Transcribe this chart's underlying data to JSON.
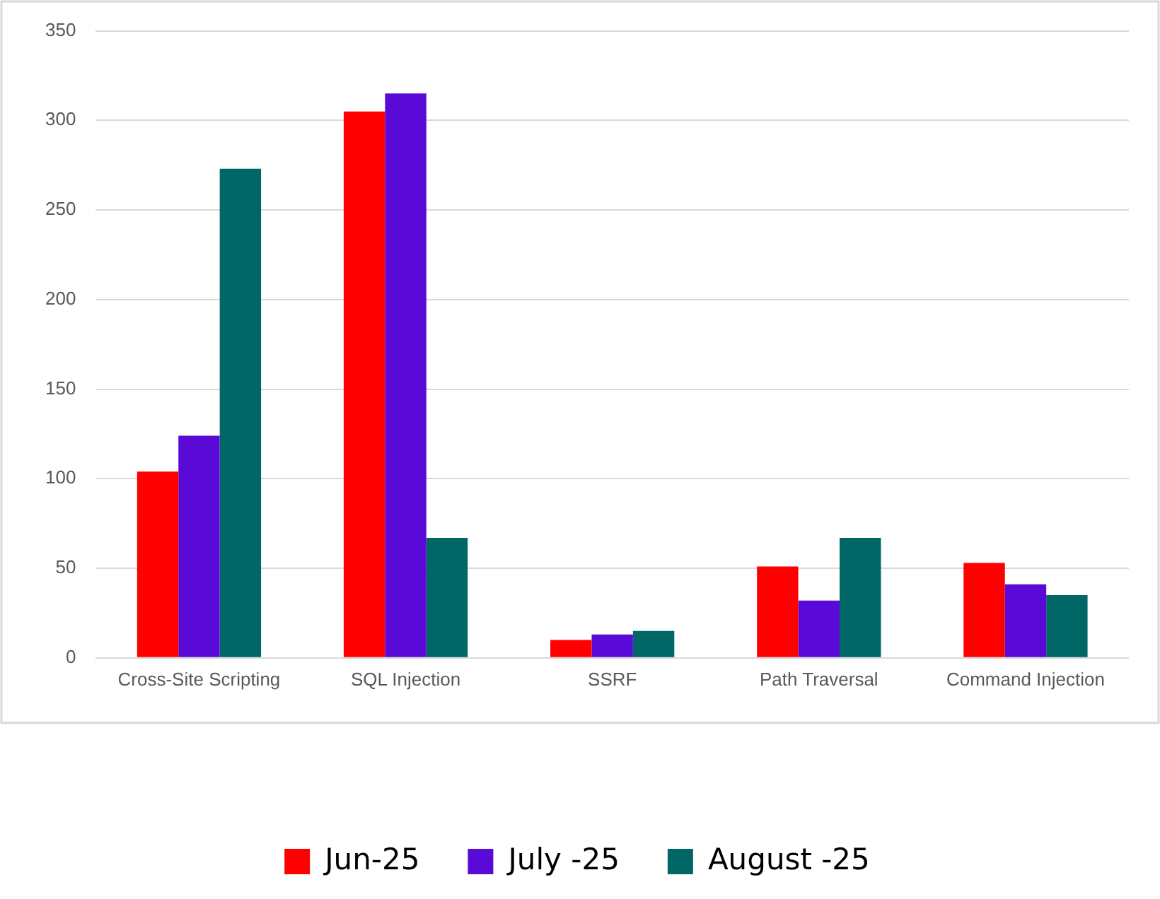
{
  "chart_data": {
    "type": "bar",
    "categories": [
      "Cross-Site Scripting",
      "SQL Injection",
      "SSRF",
      "Path Traversal",
      "Command Injection"
    ],
    "series": [
      {
        "name": "Jun-25",
        "color": "#ff0000",
        "values": [
          104,
          305,
          10,
          51,
          53
        ]
      },
      {
        "name": "July -25",
        "color": "#5a0ad6",
        "values": [
          124,
          315,
          13,
          32,
          41
        ]
      },
      {
        "name": "August -25",
        "color": "#006666",
        "values": [
          273,
          67,
          15,
          67,
          35
        ]
      }
    ],
    "ylim": [
      0,
      350
    ],
    "yticks": [
      0,
      50,
      100,
      150,
      200,
      250,
      300,
      350
    ],
    "grid": "y",
    "legend": "bottom"
  }
}
